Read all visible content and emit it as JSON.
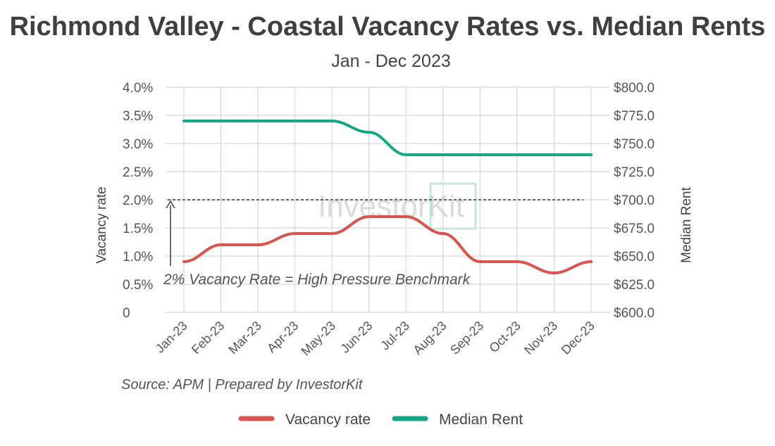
{
  "chart_data": {
    "type": "line",
    "title": "Richmond Valley - Coastal Vacancy Rates vs. Median Rents",
    "subtitle": "Jan - Dec 2023",
    "categories": [
      "Jan-23",
      "Feb-23",
      "Mar-23",
      "Apr-23",
      "May-23",
      "Jun-23",
      "Jul-23",
      "Aug-23",
      "Sep-23",
      "Oct-23",
      "Nov-23",
      "Dec-23"
    ],
    "series": [
      {
        "name": "Vacancy rate",
        "axis": "left",
        "color": "#d9534f",
        "values": [
          0.9,
          1.2,
          1.2,
          1.4,
          1.4,
          1.7,
          1.7,
          1.4,
          0.9,
          0.9,
          0.7,
          0.9
        ]
      },
      {
        "name": "Median Rent",
        "axis": "right",
        "color": "#12a883",
        "values": [
          770,
          770,
          770,
          770,
          770,
          760,
          740,
          740,
          740,
          740,
          740,
          740
        ]
      }
    ],
    "left_axis": {
      "label": "Vacancy rate",
      "ylim": [
        0,
        4.0
      ],
      "ticks": [
        "0",
        "0.5%",
        "1.0%",
        "1.5%",
        "2.0%",
        "2.5%",
        "3.0%",
        "3.5%",
        "4.0%"
      ]
    },
    "right_axis": {
      "label": "Median Rent",
      "ylim": [
        600,
        800
      ],
      "ticks": [
        "$600.0",
        "$625.0",
        "$650.0",
        "$675.0",
        "$700.0",
        "$725.0",
        "$750.0",
        "$775.0",
        "$800.0"
      ]
    },
    "benchmark": {
      "value": 2.0,
      "label": "2% Vacancy Rate = High Pressure Benchmark"
    },
    "watermark": "InvestorKit",
    "source": "Source: APM | Prepared by InvestorKit",
    "grid": true,
    "legend_position": "bottom"
  }
}
